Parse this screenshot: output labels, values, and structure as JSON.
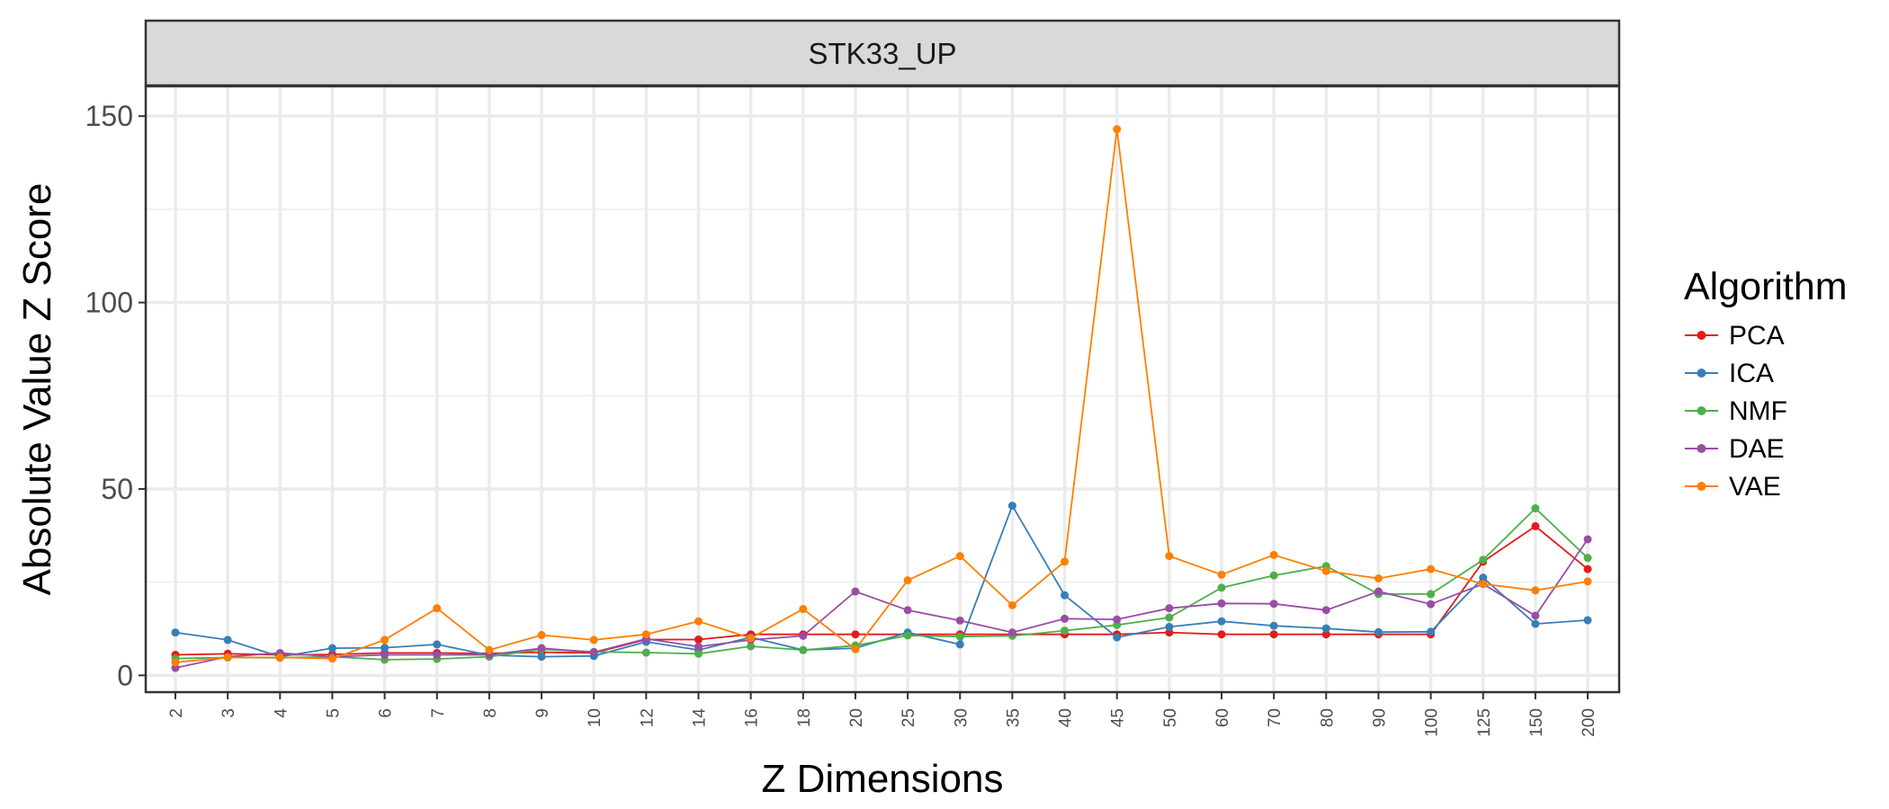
{
  "chart_data": {
    "type": "line",
    "title": "STK33_UP",
    "xlabel": "Z Dimensions",
    "ylabel": "Absolute Value Z Score",
    "categories": [
      "2",
      "3",
      "4",
      "5",
      "6",
      "7",
      "8",
      "9",
      "10",
      "12",
      "14",
      "16",
      "18",
      "20",
      "25",
      "30",
      "35",
      "40",
      "45",
      "50",
      "60",
      "70",
      "80",
      "90",
      "100",
      "125",
      "150",
      "200"
    ],
    "yticks": [
      0,
      50,
      100,
      150
    ],
    "ylim": [
      -4.5,
      158
    ],
    "grid": true,
    "legend": {
      "title": "Algorithm",
      "position": "right"
    },
    "series": [
      {
        "name": "PCA",
        "color": "#e41a1c",
        "values": [
          5.5,
          5.8,
          5.5,
          5.6,
          6.0,
          6.0,
          5.9,
          6.2,
          6.0,
          9.6,
          9.6,
          11.0,
          11.0,
          11.0,
          11.0,
          11.0,
          11.0,
          11.0,
          11.0,
          11.5,
          11.0,
          11.0,
          11.0,
          11.0,
          11.0,
          30.5,
          40.0,
          28.5
        ]
      },
      {
        "name": "ICA",
        "color": "#377eb8",
        "values": [
          11.5,
          9.5,
          5.0,
          7.3,
          7.4,
          8.3,
          5.4,
          5.0,
          5.2,
          9.0,
          6.8,
          10.2,
          6.8,
          7.3,
          11.5,
          8.3,
          45.5,
          21.5,
          10.2,
          13.0,
          14.5,
          13.3,
          12.6,
          11.6,
          11.7,
          26.2,
          13.8,
          14.8
        ]
      },
      {
        "name": "NMF",
        "color": "#4daf4a",
        "values": [
          4.5,
          4.8,
          4.7,
          5.0,
          4.2,
          4.4,
          5.0,
          7.0,
          6.3,
          6.1,
          5.8,
          7.8,
          6.8,
          8.0,
          10.7,
          10.4,
          10.6,
          12.0,
          13.5,
          15.5,
          23.5,
          26.8,
          29.3,
          21.8,
          21.8,
          31.0,
          44.8,
          31.5
        ]
      },
      {
        "name": "DAE",
        "color": "#984ea3",
        "values": [
          2.0,
          5.0,
          6.0,
          5.0,
          5.5,
          5.5,
          5.5,
          7.3,
          6.2,
          9.8,
          7.7,
          9.5,
          10.6,
          22.5,
          17.5,
          14.7,
          11.5,
          15.2,
          15.0,
          18.0,
          19.3,
          19.2,
          17.5,
          22.5,
          19.1,
          24.5,
          16.0,
          36.5
        ]
      },
      {
        "name": "VAE",
        "color": "#ff7f00",
        "values": [
          3.5,
          4.8,
          4.8,
          4.5,
          9.5,
          18.0,
          6.8,
          10.8,
          9.5,
          11.0,
          14.5,
          10.0,
          17.8,
          7.0,
          25.5,
          32.0,
          18.8,
          30.5,
          146.5,
          32.0,
          27.0,
          32.3,
          28.0,
          26.0,
          28.5,
          24.5,
          22.8,
          25.2
        ]
      }
    ]
  }
}
